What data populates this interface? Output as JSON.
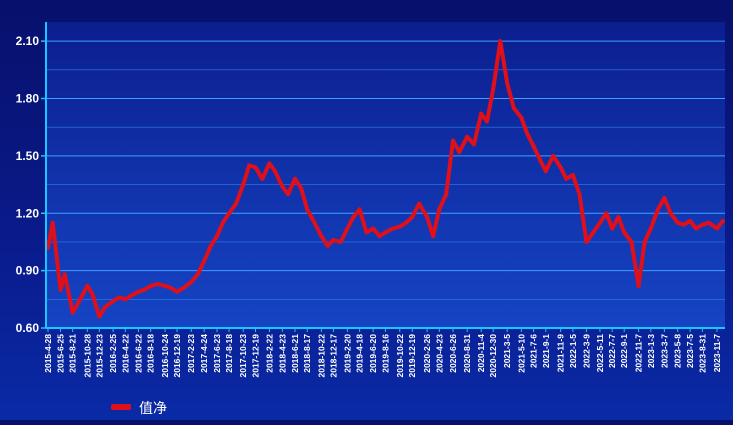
{
  "chart_data": {
    "type": "line",
    "title": "",
    "xlabel": "",
    "ylabel": "",
    "ylim": [
      0.6,
      2.2
    ],
    "yticks": [
      "0.60",
      "0.90",
      "1.20",
      "1.50",
      "1.80",
      "2.10"
    ],
    "ytick_values": [
      0.6,
      0.9,
      1.2,
      1.5,
      1.8,
      2.1
    ],
    "xtick_labels": [
      "2015-4-28",
      "2015-6-25",
      "2015-8-21",
      "2015-10-28",
      "2015-12-23",
      "2016-2-25",
      "2016-4-22",
      "2016-6-22",
      "2016-8-18",
      "2016-10-24",
      "2016-12-19",
      "2017-2-23",
      "2017-4-24",
      "2017-6-23",
      "2017-8-18",
      "2017-10-23",
      "2017-12-19",
      "2018-2-22",
      "2018-4-23",
      "2018-6-21",
      "2018-8-17",
      "2018-10-22",
      "2018-12-17",
      "2019-2-20",
      "2019-4-18",
      "2019-6-20",
      "2019-8-16",
      "2019-10-22",
      "2019-12-19",
      "2020-2-26",
      "2020-4-23",
      "2020-6-26",
      "2020-8-31",
      "2020-11-4",
      "2020-12-30",
      "2021-3-5",
      "2021-5-10",
      "2021-7-6",
      "2021-9-1",
      "2021-11-9",
      "2022-1-5",
      "2022-3-9",
      "2022-5-11",
      "2022-7-7",
      "2022-9-1",
      "2022-11-7",
      "2023-1-3",
      "2023-3-7",
      "2023-5-8",
      "2023-7-5",
      "2023-8-31",
      "2023-11-7"
    ],
    "grid": true,
    "legend_position": "bottom-left",
    "series": [
      {
        "name": "值净",
        "color": "#e0101a",
        "x": [
          "2015-4-28",
          "2015-5-20",
          "2015-6-10",
          "2015-6-25",
          "2015-7-15",
          "2015-8-21",
          "2015-9-20",
          "2015-10-28",
          "2015-11-20",
          "2015-12-23",
          "2016-1-20",
          "2016-2-25",
          "2016-3-25",
          "2016-4-22",
          "2016-5-20",
          "2016-6-22",
          "2016-7-20",
          "2016-8-18",
          "2016-9-20",
          "2016-10-24",
          "2016-11-20",
          "2016-12-19",
          "2017-1-20",
          "2017-2-23",
          "2017-3-25",
          "2017-4-24",
          "2017-5-25",
          "2017-6-23",
          "2017-7-20",
          "2017-8-18",
          "2017-9-20",
          "2017-10-23",
          "2017-11-20",
          "2017-12-19",
          "2018-1-20",
          "2018-2-22",
          "2018-3-20",
          "2018-4-23",
          "2018-5-20",
          "2018-6-21",
          "2018-7-20",
          "2018-8-17",
          "2018-9-20",
          "2018-10-22",
          "2018-11-20",
          "2018-12-17",
          "2019-1-20",
          "2019-2-20",
          "2019-3-20",
          "2019-4-18",
          "2019-5-20",
          "2019-6-20",
          "2019-7-20",
          "2019-8-16",
          "2019-9-20",
          "2019-10-22",
          "2019-11-20",
          "2019-12-19",
          "2020-1-20",
          "2020-2-26",
          "2020-3-25",
          "2020-4-23",
          "2020-5-25",
          "2020-6-26",
          "2020-7-25",
          "2020-8-31",
          "2020-10-1",
          "2020-11-4",
          "2020-12-1",
          "2020-12-30",
          "2021-2-1",
          "2021-3-5",
          "2021-4-5",
          "2021-5-10",
          "2021-6-5",
          "2021-7-6",
          "2021-8-5",
          "2021-9-1",
          "2021-10-5",
          "2021-11-9",
          "2021-12-5",
          "2022-1-5",
          "2022-2-5",
          "2022-3-9",
          "2022-4-10",
          "2022-5-11",
          "2022-6-10",
          "2022-7-7",
          "2022-8-5",
          "2022-9-1",
          "2022-10-5",
          "2022-11-7",
          "2022-12-5",
          "2023-1-3",
          "2023-2-5",
          "2023-3-7",
          "2023-4-5",
          "2023-5-8",
          "2023-6-5",
          "2023-7-5",
          "2023-8-1",
          "2023-8-31",
          "2023-10-1",
          "2023-11-7",
          "2023-12-5"
        ],
        "values": [
          1.02,
          1.15,
          0.95,
          0.8,
          0.88,
          0.68,
          0.74,
          0.82,
          0.78,
          0.66,
          0.71,
          0.74,
          0.76,
          0.75,
          0.77,
          0.79,
          0.8,
          0.82,
          0.83,
          0.82,
          0.81,
          0.79,
          0.81,
          0.84,
          0.88,
          0.95,
          1.03,
          1.08,
          1.15,
          1.2,
          1.25,
          1.35,
          1.45,
          1.44,
          1.38,
          1.46,
          1.42,
          1.34,
          1.3,
          1.38,
          1.33,
          1.22,
          1.15,
          1.08,
          1.03,
          1.06,
          1.05,
          1.12,
          1.18,
          1.22,
          1.1,
          1.12,
          1.08,
          1.1,
          1.12,
          1.13,
          1.15,
          1.18,
          1.25,
          1.18,
          1.08,
          1.22,
          1.3,
          1.58,
          1.52,
          1.6,
          1.56,
          1.72,
          1.68,
          1.85,
          2.1,
          1.88,
          1.75,
          1.7,
          1.62,
          1.55,
          1.48,
          1.42,
          1.5,
          1.44,
          1.38,
          1.4,
          1.3,
          1.05,
          1.1,
          1.15,
          1.2,
          1.12,
          1.18,
          1.1,
          1.05,
          0.82,
          1.05,
          1.12,
          1.22,
          1.28,
          1.2,
          1.15,
          1.14,
          1.16,
          1.12,
          1.14,
          1.15,
          1.12,
          1.16
        ]
      }
    ]
  }
}
